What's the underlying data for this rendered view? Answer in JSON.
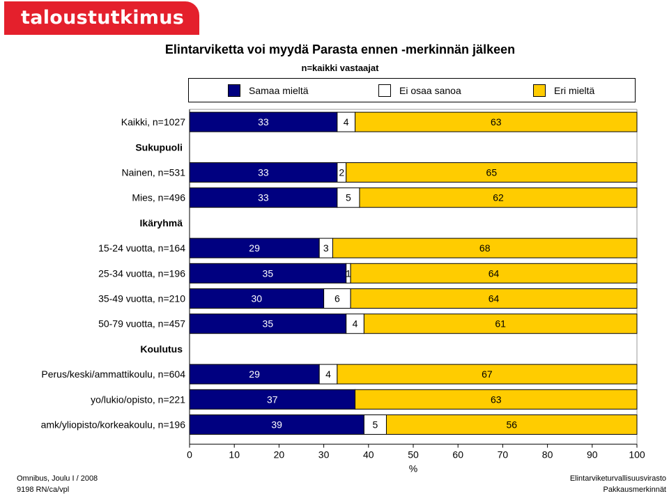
{
  "brand": "taloustutkimus oy",
  "chart_data": {
    "type": "bar",
    "orientation": "horizontal",
    "stacked": true,
    "title": "Elintarviketta voi myydä Parasta ennen -merkinnän jälkeen",
    "subtitle": "n=kaikki vastaajat",
    "xlabel": "%",
    "xlim": [
      0,
      100
    ],
    "xticks": [
      "0",
      "10",
      "20",
      "30",
      "40",
      "50",
      "60",
      "70",
      "80",
      "90",
      "100"
    ],
    "grid": false,
    "legend_position": "top",
    "series": [
      {
        "name": "Samaa mieltä",
        "color": "#000080"
      },
      {
        "name": "Ei osaa sanoa",
        "color": "#ffffff"
      },
      {
        "name": "Eri mieltä",
        "color": "#ffcc00"
      }
    ],
    "rows": [
      {
        "label": "Kaikki, n=1027",
        "values": [
          33,
          4,
          63
        ]
      },
      {
        "label": "Sukupuoli",
        "heading": true
      },
      {
        "label": "Nainen, n=531",
        "values": [
          33,
          2,
          65
        ]
      },
      {
        "label": "Mies, n=496",
        "values": [
          33,
          5,
          62
        ]
      },
      {
        "label": "Ikäryhmä",
        "heading": true
      },
      {
        "label": "15-24 vuotta, n=164",
        "values": [
          29,
          3,
          68
        ]
      },
      {
        "label": "25-34 vuotta, n=196",
        "values": [
          35,
          1,
          64
        ]
      },
      {
        "label": "35-49 vuotta, n=210",
        "values": [
          30,
          6,
          64
        ]
      },
      {
        "label": "50-79 vuotta, n=457",
        "values": [
          35,
          4,
          61
        ]
      },
      {
        "label": "Koulutus",
        "heading": true
      },
      {
        "label": "Perus/keski/ammattikoulu, n=604",
        "values": [
          29,
          4,
          67
        ]
      },
      {
        "label": "yo/lukio/opisto, n=221",
        "values": [
          37,
          0,
          63
        ]
      },
      {
        "label": "amk/yliopisto/korkeakoulu, n=196",
        "values": [
          39,
          5,
          56
        ]
      }
    ]
  },
  "footer": {
    "left_line1": "Omnibus, Joulu I / 2008",
    "left_line2": "9198 RN/ca/vpl",
    "right_line1": "Elintarviketurvallisuusvirasto",
    "right_line2": "Pakkausmerkinnät"
  }
}
